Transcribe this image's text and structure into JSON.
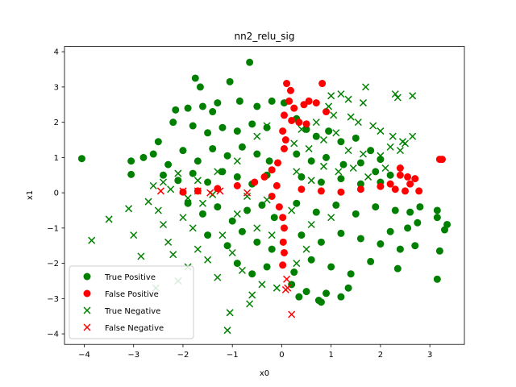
{
  "chart_data": {
    "type": "scatter",
    "title": "nn2_relu_sig",
    "xlabel": "x0",
    "ylabel": "x1",
    "xlim": [
      -4.4,
      3.7
    ],
    "ylim": [
      -4.3,
      4.15
    ],
    "x_ticks": [
      -4,
      -3,
      -2,
      -1,
      0,
      1,
      2,
      3
    ],
    "y_ticks": [
      -4,
      -3,
      -2,
      -1,
      0,
      1,
      2,
      3,
      4
    ],
    "grid": false,
    "legend_position": "lower-left",
    "series": [
      {
        "name": "True Positive",
        "marker": "circle",
        "color": "#008000",
        "points": [
          [
            -4.05,
            0.97
          ],
          [
            -3.05,
            0.9
          ],
          [
            -3.05,
            0.52
          ],
          [
            -2.8,
            1.0
          ],
          [
            -2.5,
            1.45
          ],
          [
            -1.75,
            3.25
          ],
          [
            -1.65,
            3.0
          ],
          [
            -1.05,
            3.15
          ],
          [
            -0.65,
            3.7
          ],
          [
            -2.15,
            2.35
          ],
          [
            -1.9,
            2.4
          ],
          [
            -1.6,
            2.45
          ],
          [
            -1.4,
            2.3
          ],
          [
            -1.3,
            2.55
          ],
          [
            -0.85,
            2.6
          ],
          [
            -0.5,
            2.45
          ],
          [
            -0.2,
            2.6
          ],
          [
            0.05,
            2.55
          ],
          [
            -2.2,
            2.0
          ],
          [
            -1.8,
            1.9
          ],
          [
            -1.5,
            1.7
          ],
          [
            -1.2,
            1.85
          ],
          [
            -0.9,
            1.75
          ],
          [
            -0.6,
            1.95
          ],
          [
            -0.3,
            1.85
          ],
          [
            -2.6,
            1.1
          ],
          [
            -2.3,
            0.8
          ],
          [
            -2.0,
            1.2
          ],
          [
            -1.7,
            0.9
          ],
          [
            -1.4,
            1.25
          ],
          [
            -1.1,
            1.05
          ],
          [
            -0.8,
            1.3
          ],
          [
            -0.5,
            1.1
          ],
          [
            -0.25,
            0.9
          ],
          [
            -2.4,
            0.5
          ],
          [
            -2.1,
            0.35
          ],
          [
            -1.8,
            0.55
          ],
          [
            -1.5,
            0.3
          ],
          [
            -1.2,
            0.6
          ],
          [
            -0.9,
            0.45
          ],
          [
            -0.6,
            0.25
          ],
          [
            -0.3,
            0.5
          ],
          [
            -1.9,
            -0.3
          ],
          [
            -1.6,
            -0.6
          ],
          [
            -1.3,
            -0.4
          ],
          [
            -1.0,
            -0.8
          ],
          [
            -0.7,
            -0.5
          ],
          [
            -0.4,
            -0.35
          ],
          [
            -0.15,
            -0.7
          ],
          [
            -1.5,
            -1.2
          ],
          [
            -1.1,
            -1.5
          ],
          [
            -0.8,
            -1.1
          ],
          [
            -0.5,
            -1.4
          ],
          [
            -0.2,
            -1.6
          ],
          [
            -0.9,
            -2.0
          ],
          [
            -0.6,
            -2.3
          ],
          [
            -0.3,
            -2.1
          ],
          [
            0.2,
            -2.6
          ],
          [
            0.35,
            -2.95
          ],
          [
            0.5,
            -2.8
          ],
          [
            0.75,
            -3.05
          ],
          [
            0.8,
            -3.1
          ],
          [
            0.9,
            -2.85
          ],
          [
            1.2,
            -2.95
          ],
          [
            1.35,
            -2.7
          ],
          [
            0.3,
            2.1
          ],
          [
            0.5,
            1.8
          ],
          [
            0.7,
            1.6
          ],
          [
            0.95,
            1.75
          ],
          [
            1.2,
            1.45
          ],
          [
            1.5,
            1.55
          ],
          [
            1.8,
            1.2
          ],
          [
            2.0,
            0.95
          ],
          [
            0.3,
            1.1
          ],
          [
            0.6,
            0.9
          ],
          [
            0.9,
            1.0
          ],
          [
            1.25,
            0.8
          ],
          [
            1.6,
            0.85
          ],
          [
            1.9,
            0.6
          ],
          [
            2.2,
            0.5
          ],
          [
            0.4,
            0.45
          ],
          [
            0.8,
            0.3
          ],
          [
            1.2,
            0.4
          ],
          [
            1.6,
            0.25
          ],
          [
            2.0,
            0.3
          ],
          [
            0.3,
            -0.3
          ],
          [
            0.7,
            -0.55
          ],
          [
            1.1,
            -0.35
          ],
          [
            1.5,
            -0.6
          ],
          [
            1.9,
            -0.4
          ],
          [
            2.3,
            -0.5
          ],
          [
            2.6,
            -0.55
          ],
          [
            2.8,
            -0.4
          ],
          [
            3.15,
            -0.5
          ],
          [
            3.35,
            -0.9
          ],
          [
            3.3,
            -1.05
          ],
          [
            3.15,
            -0.7
          ],
          [
            2.75,
            -0.85
          ],
          [
            2.55,
            -1.0
          ],
          [
            2.2,
            -1.1
          ],
          [
            0.4,
            -1.2
          ],
          [
            0.8,
            -1.4
          ],
          [
            1.2,
            -1.15
          ],
          [
            1.6,
            -1.3
          ],
          [
            2.0,
            -1.45
          ],
          [
            2.4,
            -1.6
          ],
          [
            2.7,
            -1.5
          ],
          [
            3.2,
            -1.65
          ],
          [
            2.35,
            -2.15
          ],
          [
            0.6,
            -1.9
          ],
          [
            1.0,
            -2.1
          ],
          [
            1.4,
            -2.3
          ],
          [
            1.8,
            -1.95
          ],
          [
            3.15,
            -2.45
          ],
          [
            0.25,
            -2.25
          ]
        ]
      },
      {
        "name": "False Positive",
        "marker": "circle",
        "color": "#ff0000",
        "points": [
          [
            0.1,
            3.1
          ],
          [
            0.18,
            2.9
          ],
          [
            0.82,
            3.1
          ],
          [
            0.15,
            2.6
          ],
          [
            0.25,
            2.4
          ],
          [
            0.45,
            2.5
          ],
          [
            0.55,
            2.6
          ],
          [
            0.7,
            2.55
          ],
          [
            0.9,
            2.3
          ],
          [
            0.05,
            2.2
          ],
          [
            0.2,
            2.05
          ],
          [
            0.35,
            2.0
          ],
          [
            0.5,
            1.95
          ],
          [
            0.02,
            1.75
          ],
          [
            0.08,
            1.5
          ],
          [
            0.05,
            1.25
          ],
          [
            -0.08,
            0.85
          ],
          [
            -0.2,
            0.65
          ],
          [
            -0.35,
            0.45
          ],
          [
            -0.55,
            0.3
          ],
          [
            -0.9,
            0.2
          ],
          [
            -1.3,
            0.12
          ],
          [
            -1.7,
            0.05
          ],
          [
            -2.0,
            0.02
          ],
          [
            -0.1,
            0.2
          ],
          [
            -0.2,
            -0.1
          ],
          [
            -0.05,
            -0.4
          ],
          [
            0.02,
            -0.7
          ],
          [
            0.05,
            -1.0
          ],
          [
            0.03,
            -1.4
          ],
          [
            0.05,
            -1.7
          ],
          [
            0.02,
            -2.05
          ],
          [
            0.4,
            0.1
          ],
          [
            0.8,
            0.05
          ],
          [
            1.2,
            0.02
          ],
          [
            1.6,
            0.1
          ],
          [
            2.0,
            0.18
          ],
          [
            2.2,
            0.25
          ],
          [
            2.4,
            0.5
          ],
          [
            2.55,
            0.45
          ],
          [
            2.6,
            0.25
          ],
          [
            2.5,
            0.05
          ],
          [
            2.3,
            0.1
          ],
          [
            2.7,
            0.4
          ],
          [
            2.78,
            0.05
          ],
          [
            3.2,
            0.95
          ],
          [
            3.25,
            0.95
          ],
          [
            2.4,
            0.7
          ]
        ]
      },
      {
        "name": "True Negative",
        "marker": "x",
        "color": "#008000",
        "points": [
          [
            -3.85,
            -1.35
          ],
          [
            -3.5,
            -0.75
          ],
          [
            -3.1,
            -0.45
          ],
          [
            -3.0,
            -1.2
          ],
          [
            -2.85,
            -1.8
          ],
          [
            -2.7,
            -0.25
          ],
          [
            -2.5,
            -0.5
          ],
          [
            -2.4,
            -0.9
          ],
          [
            -2.3,
            -1.4
          ],
          [
            -2.2,
            -1.75
          ],
          [
            -2.55,
            -2.7
          ],
          [
            -2.1,
            -2.5
          ],
          [
            -1.9,
            -2.1
          ],
          [
            -1.7,
            -1.6
          ],
          [
            -1.5,
            -1.9
          ],
          [
            -1.3,
            -2.4
          ],
          [
            -1.0,
            -1.7
          ],
          [
            -0.8,
            -2.2
          ],
          [
            -0.6,
            -2.9
          ],
          [
            -0.65,
            -3.15
          ],
          [
            -1.05,
            -3.4
          ],
          [
            -1.1,
            -3.9
          ],
          [
            -0.4,
            -2.6
          ],
          [
            -2.0,
            -0.7
          ],
          [
            -1.8,
            -1.0
          ],
          [
            -1.6,
            -0.3
          ],
          [
            -1.2,
            -1.2
          ],
          [
            -0.9,
            -0.6
          ],
          [
            -0.5,
            -1.0
          ],
          [
            -0.2,
            -1.2
          ],
          [
            -0.3,
            -0.2
          ],
          [
            -0.7,
            -0.1
          ],
          [
            -1.4,
            -0.05
          ],
          [
            -1.9,
            -0.15
          ],
          [
            -2.25,
            0.1
          ],
          [
            1.0,
            2.75
          ],
          [
            1.2,
            2.8
          ],
          [
            1.35,
            2.65
          ],
          [
            1.65,
            2.55
          ],
          [
            1.7,
            3.0
          ],
          [
            2.3,
            2.8
          ],
          [
            2.35,
            2.7
          ],
          [
            2.65,
            2.75
          ],
          [
            0.95,
            2.45
          ],
          [
            1.05,
            2.2
          ],
          [
            1.4,
            2.15
          ],
          [
            1.55,
            2.0
          ],
          [
            1.85,
            1.9
          ],
          [
            2.0,
            1.75
          ],
          [
            2.25,
            1.6
          ],
          [
            2.45,
            1.45
          ],
          [
            2.65,
            1.6
          ],
          [
            2.2,
            1.3
          ],
          [
            2.4,
            1.2
          ],
          [
            2.5,
            1.4
          ],
          [
            0.4,
            1.8
          ],
          [
            0.7,
            2.0
          ],
          [
            0.85,
            1.5
          ],
          [
            1.1,
            1.7
          ],
          [
            1.35,
            1.2
          ],
          [
            1.65,
            1.1
          ],
          [
            2.0,
            1.05
          ],
          [
            0.25,
            1.4
          ],
          [
            0.55,
            1.25
          ],
          [
            0.85,
            0.75
          ],
          [
            1.15,
            0.6
          ],
          [
            1.45,
            0.7
          ],
          [
            1.75,
            0.45
          ],
          [
            2.1,
            0.7
          ],
          [
            0.3,
            0.6
          ],
          [
            0.6,
            0.35
          ],
          [
            -0.5,
            1.6
          ],
          [
            -0.3,
            1.9
          ],
          [
            -0.9,
            0.9
          ],
          [
            -1.3,
            0.6
          ],
          [
            -1.7,
            0.35
          ],
          [
            -2.1,
            0.55
          ],
          [
            -2.4,
            0.3
          ],
          [
            -2.6,
            0.2
          ],
          [
            0.2,
            -0.5
          ],
          [
            0.5,
            -1.6
          ],
          [
            0.3,
            -2.0
          ],
          [
            -0.1,
            -2.7
          ],
          [
            0.6,
            -0.9
          ],
          [
            1.0,
            -0.7
          ]
        ]
      },
      {
        "name": "False Negative",
        "marker": "x",
        "color": "#ff0000",
        "points": [
          [
            -2.45,
            0.05
          ],
          [
            -2.0,
            0.05
          ],
          [
            -1.7,
            0.05
          ],
          [
            -1.45,
            0.0
          ],
          [
            -1.25,
            0.05
          ],
          [
            -0.7,
            0.0
          ],
          [
            0.1,
            -2.45
          ],
          [
            0.12,
            -2.7
          ],
          [
            0.08,
            -2.75
          ],
          [
            0.2,
            -3.45
          ]
        ]
      }
    ]
  }
}
